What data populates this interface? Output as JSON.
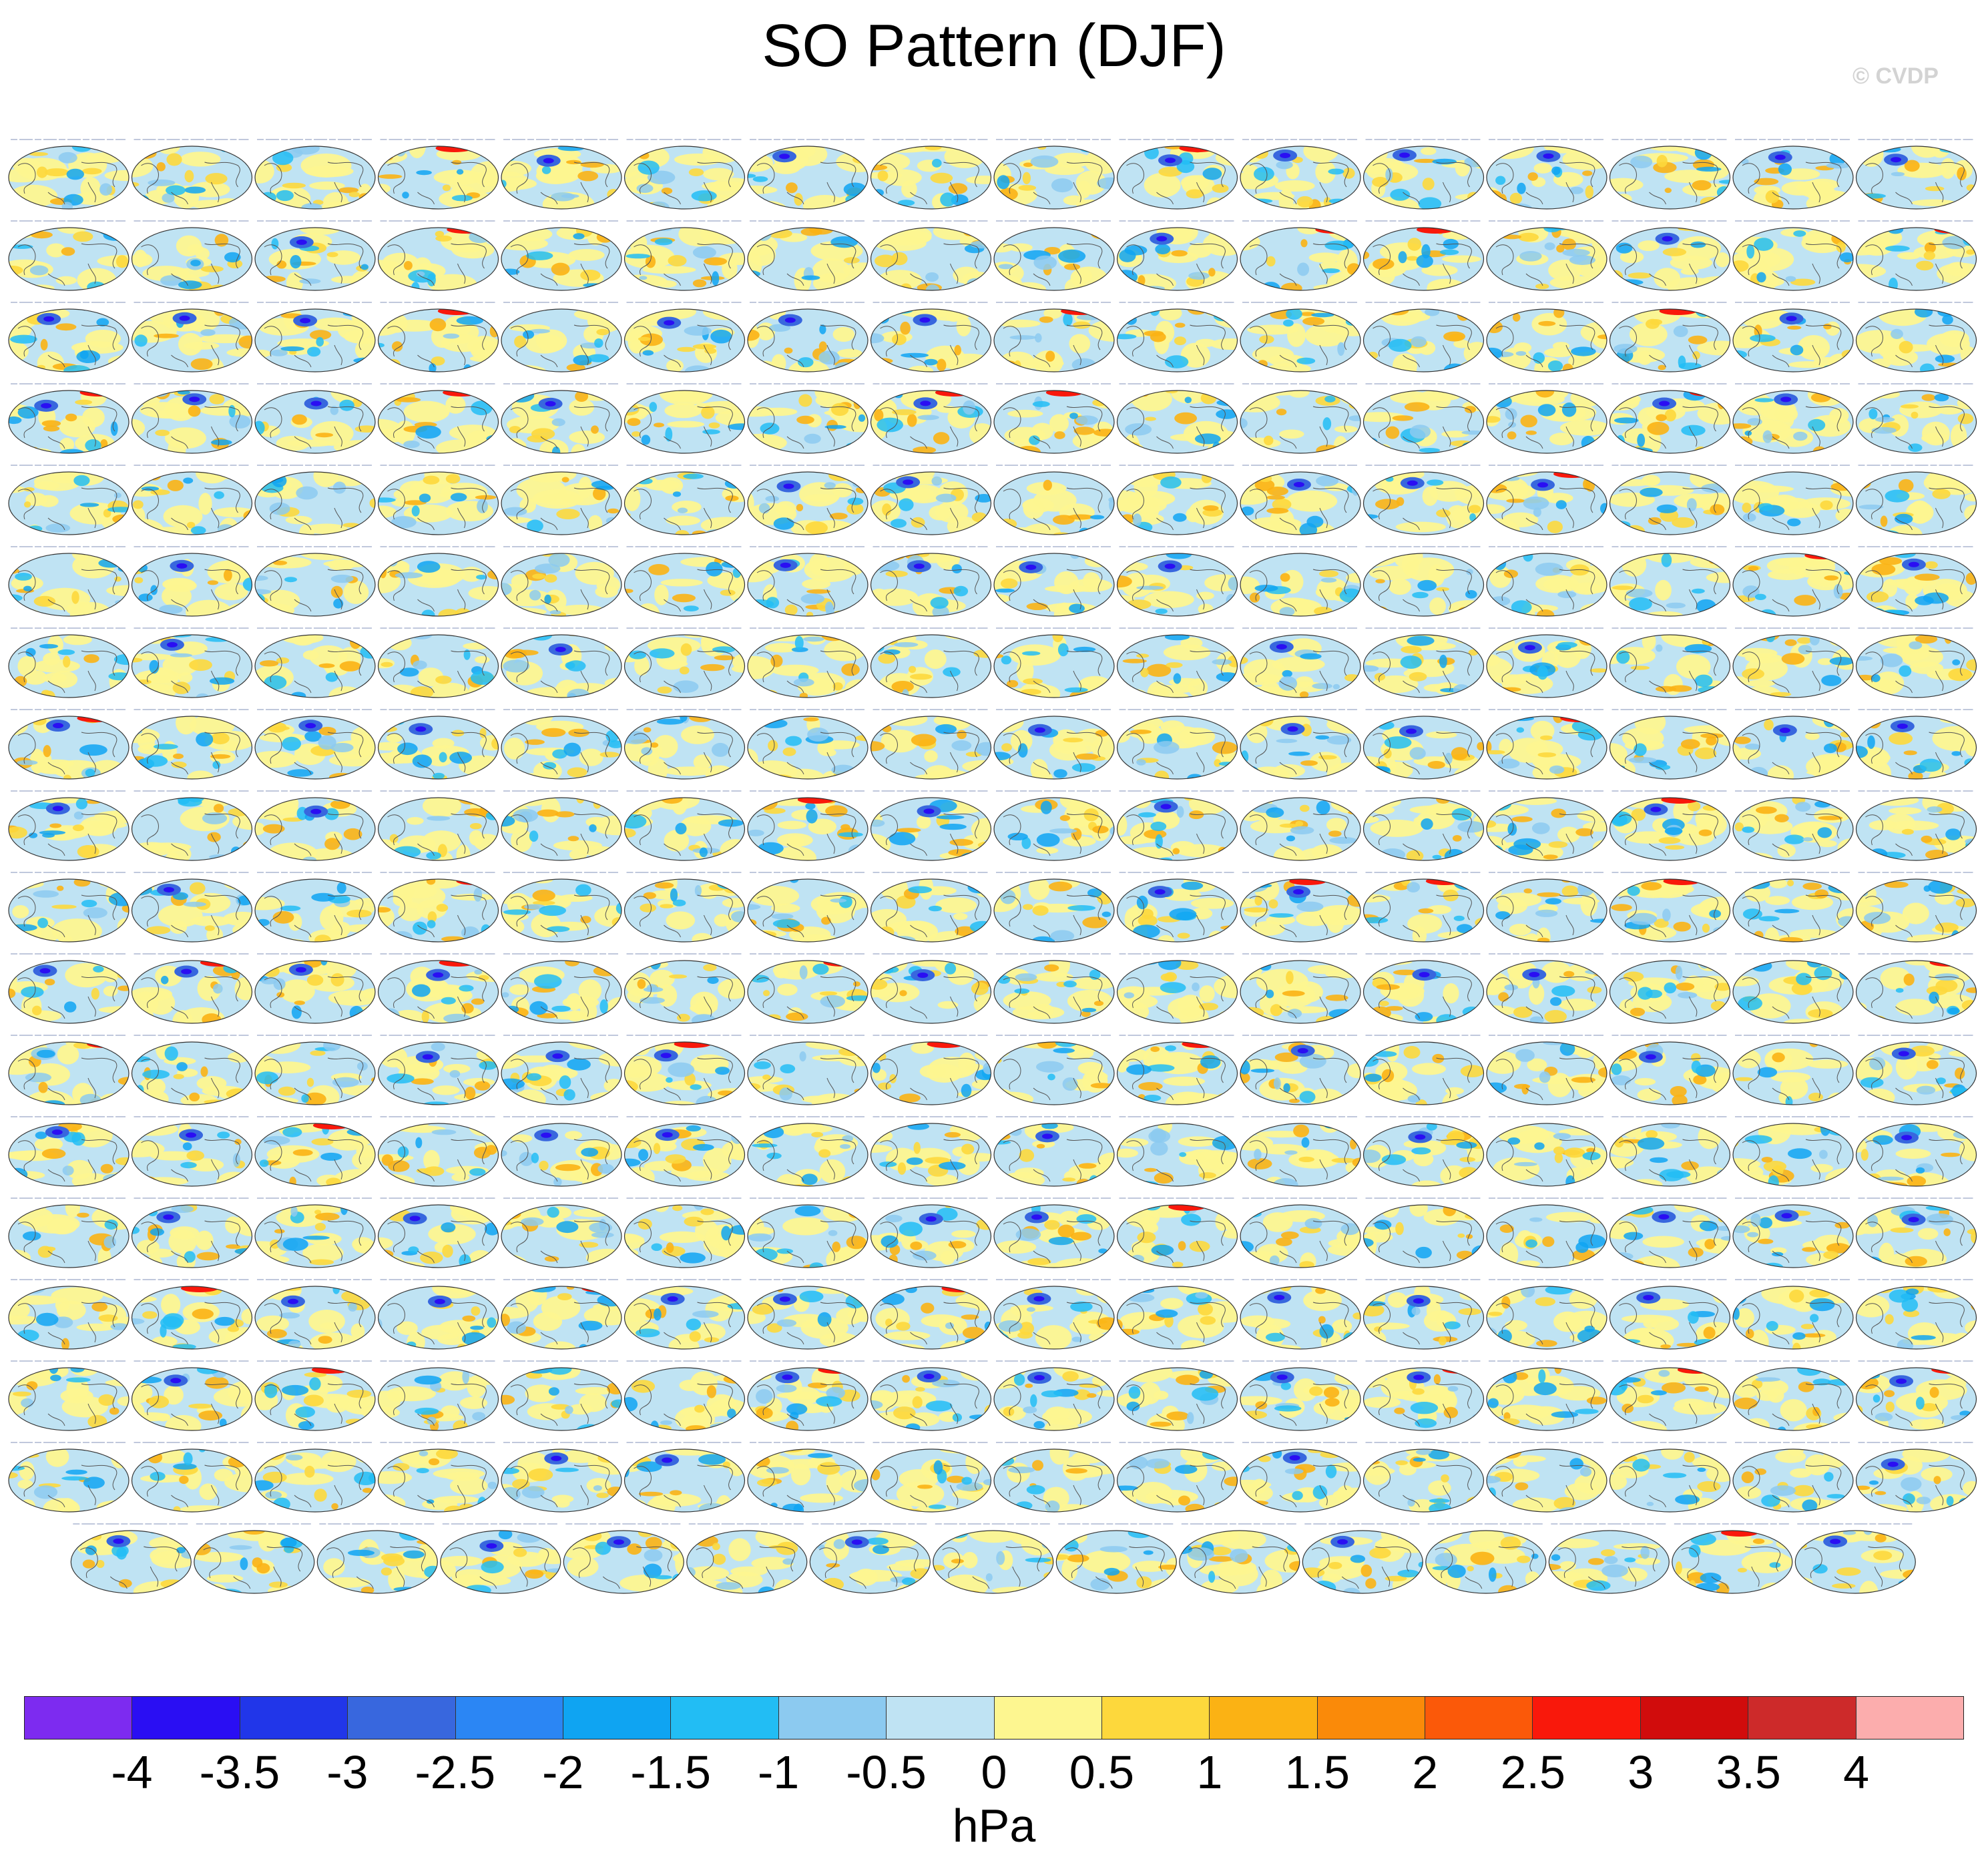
{
  "title": "SO Pattern (DJF)",
  "watermark": "© CVDP",
  "chart_data": {
    "type": "heatmap",
    "title": "SO Pattern (DJF)",
    "description_of_layout": "grid of global sea level pressure pattern maps, 16 columns x 17 full rows plus a final row of 15",
    "rows": 18,
    "columns": 16,
    "last_row_panels": 15,
    "panel_total": 287,
    "observations": [
      "ERA5",
      "ERA20_1"
    ],
    "colorbar": {
      "units": "hPa",
      "levels": [
        -4,
        -3.5,
        -3,
        -2.5,
        -2,
        -1.5,
        -1,
        -0.5,
        0,
        0.5,
        1,
        1.5,
        2,
        2.5,
        3,
        3.5,
        4
      ],
      "tick_labels": [
        "-4",
        "-3.5",
        "-3",
        "-2.5",
        "-2",
        "-1.5",
        "-1",
        "-0.5",
        "0",
        "0.5",
        "1",
        "1.5",
        "2",
        "2.5",
        "3",
        "3.5",
        "4"
      ],
      "colors": [
        "#7d2bf0",
        "#2a0ef3",
        "#2136e9",
        "#3867de",
        "#2b86f4",
        "#0fa4f2",
        "#22bdf4",
        "#8ccaf0",
        "#bfe3f3",
        "#fdf690",
        "#fdd83c",
        "#fbb214",
        "#fa8a09",
        "#fb5909",
        "#f9180b",
        "#d10c0c",
        "#cd2a2a",
        "#fcadad"
      ]
    }
  },
  "colorbar_units": "hPa"
}
